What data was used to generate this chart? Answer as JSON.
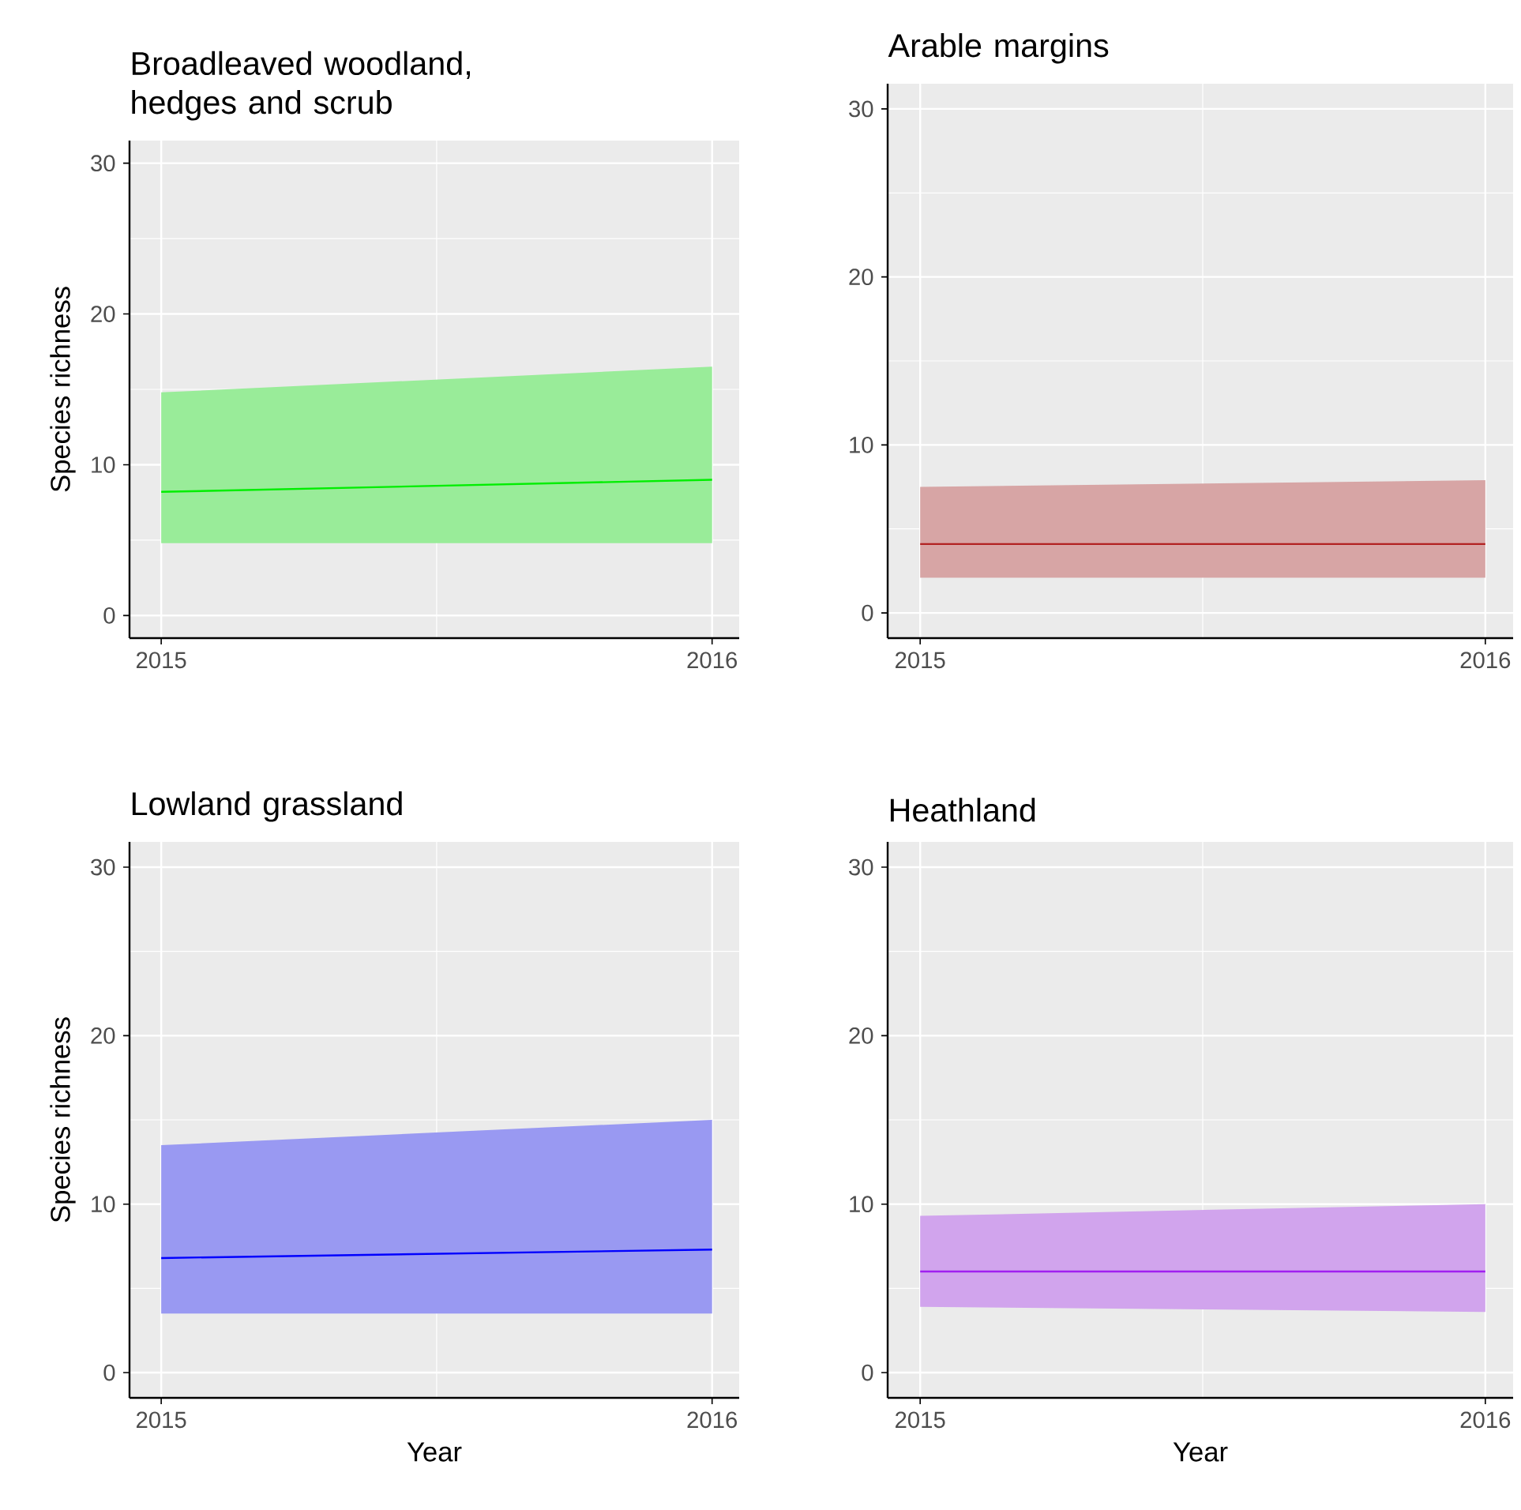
{
  "chart_data": [
    {
      "type": "line",
      "title": "Broadleaved woodland, hedges and scrub",
      "ylabel": "Species richness",
      "xlim": [
        "2014-12-11",
        "2016-01-19"
      ],
      "ylim": [
        -1.5,
        31.5
      ],
      "xticks": [
        "2015",
        "2016"
      ],
      "yticks": [
        0,
        10,
        20,
        30
      ],
      "grid": true,
      "series": [
        {
          "color": "#00ee00",
          "x": [
            "2015",
            "2016"
          ],
          "values": [
            8.2,
            9.0
          ],
          "lower": [
            4.8,
            4.8
          ],
          "upper": [
            14.8,
            16.5
          ]
        }
      ]
    },
    {
      "type": "line",
      "title": "Arable margins",
      "xlim": [
        "2014-12-11",
        "2016-01-19"
      ],
      "ylim": [
        -1.5,
        31.5
      ],
      "xticks": [
        "2015",
        "2016"
      ],
      "yticks": [
        0,
        10,
        20,
        30
      ],
      "grid": true,
      "series": [
        {
          "color": "#b22222",
          "x": [
            "2015",
            "2016"
          ],
          "values": [
            4.1,
            4.1
          ],
          "lower": [
            2.1,
            2.1
          ],
          "upper": [
            7.5,
            7.9
          ]
        }
      ]
    },
    {
      "type": "line",
      "title": "Lowland grassland",
      "ylabel": "Species richness",
      "xlabel": "Year",
      "xlim": [
        "2014-12-11",
        "2016-01-19"
      ],
      "ylim": [
        -1.5,
        31.5
      ],
      "xticks": [
        "2015",
        "2016"
      ],
      "yticks": [
        0,
        10,
        20,
        30
      ],
      "grid": true,
      "series": [
        {
          "color": "#0000ff",
          "x": [
            "2015",
            "2016"
          ],
          "values": [
            6.8,
            7.3
          ],
          "lower": [
            3.5,
            3.5
          ],
          "upper": [
            13.5,
            15.0
          ]
        }
      ]
    },
    {
      "type": "line",
      "title": "Heathland",
      "xlabel": "Year",
      "xlim": [
        "2014-12-11",
        "2016-01-19"
      ],
      "ylim": [
        -1.5,
        31.5
      ],
      "xticks": [
        "2015",
        "2016"
      ],
      "yticks": [
        0,
        10,
        20,
        30
      ],
      "grid": true,
      "series": [
        {
          "color": "#a020f0",
          "x": [
            "2015",
            "2016"
          ],
          "values": [
            6.0,
            6.0
          ],
          "lower": [
            3.9,
            3.6
          ],
          "upper": [
            9.3,
            10.0
          ]
        }
      ]
    }
  ]
}
